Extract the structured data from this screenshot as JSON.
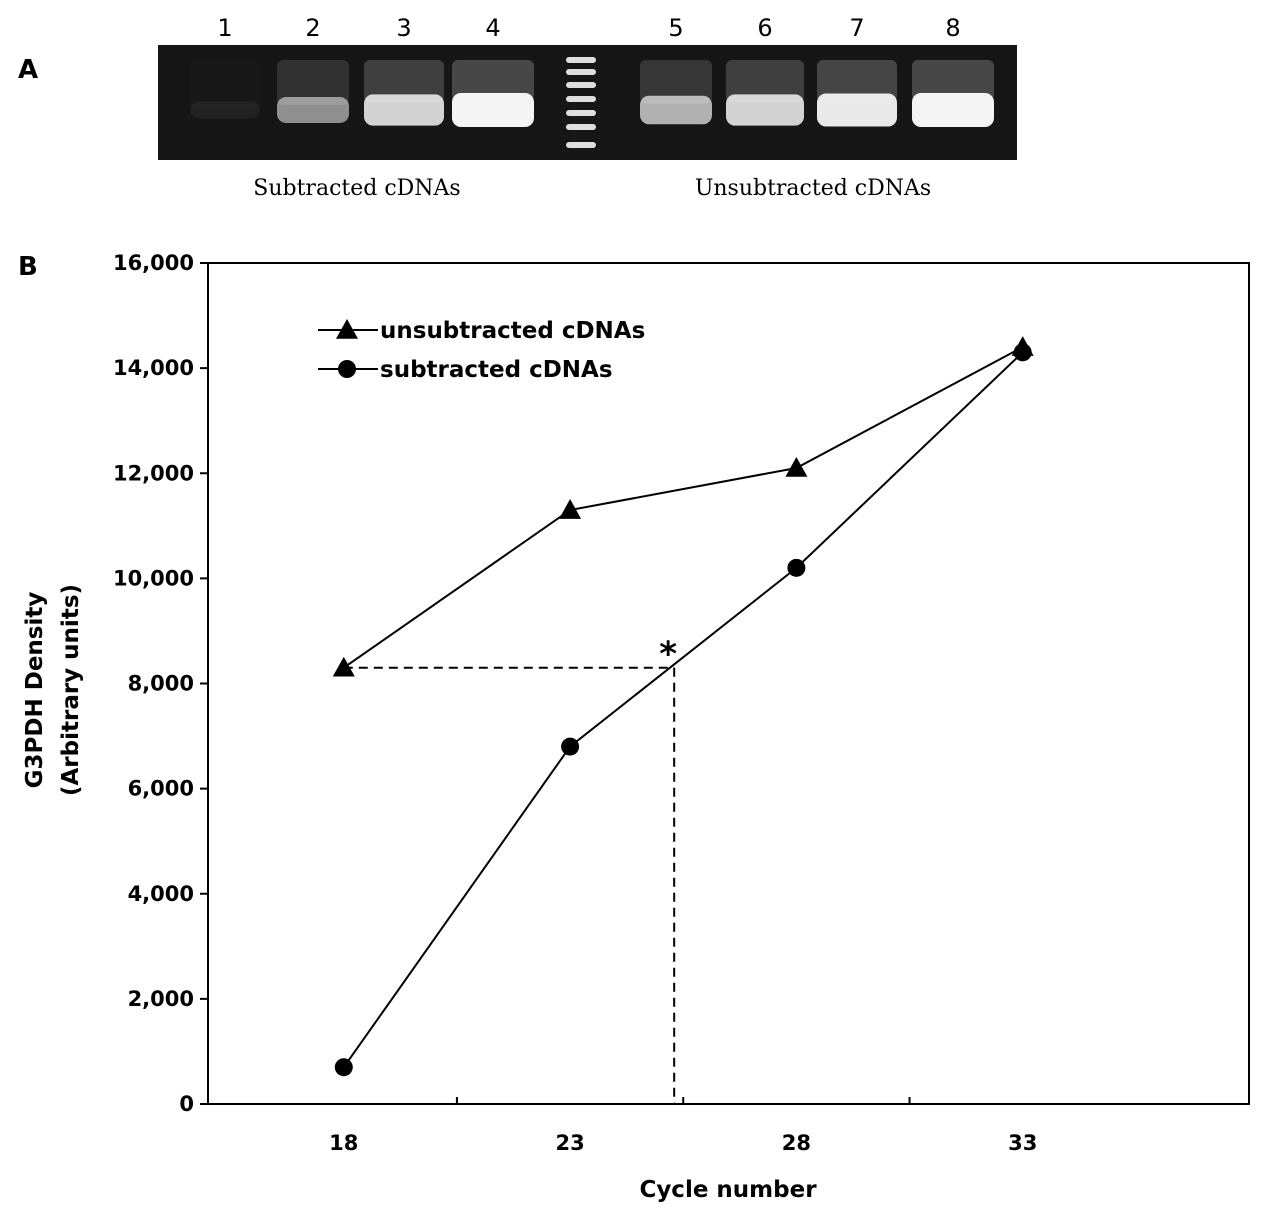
{
  "panels": {
    "a": {
      "letter": "A"
    },
    "b": {
      "letter": "B"
    }
  },
  "gel": {
    "lane_numbers": [
      "1",
      "2",
      "3",
      "4",
      "5",
      "6",
      "7",
      "8"
    ],
    "group_labels": [
      "Subtracted cDNAs",
      "Unsubtracted cDNAs"
    ],
    "band_intensity": [
      0.05,
      0.55,
      0.85,
      1.0,
      0.7,
      0.85,
      0.95,
      1.0
    ],
    "colors": {
      "background": "#161616",
      "band": "#f4f4f4",
      "ladder": "#dedede"
    }
  },
  "chart_data": {
    "type": "line",
    "xlabel": "Cycle number",
    "ylabel_lines": [
      "G3PDH Density",
      "(Arbitrary units)"
    ],
    "x": [
      18,
      23,
      28,
      33
    ],
    "xlim": [
      15,
      38
    ],
    "x_tick_labels": [
      "18",
      "23",
      "28",
      "33"
    ],
    "ylim": [
      0,
      16000
    ],
    "y_ticks": [
      0,
      2000,
      4000,
      6000,
      8000,
      10000,
      12000,
      14000,
      16000
    ],
    "y_tick_labels": [
      "0",
      "2,000",
      "4,000",
      "6,000",
      "8,000",
      "10,000",
      "12,000",
      "14,000",
      "16,000"
    ],
    "grid": false,
    "legend_position": "top-left",
    "series": [
      {
        "name": "unsubtracted cDNAs",
        "marker": "triangle",
        "values": [
          8300,
          11300,
          12100,
          14400
        ]
      },
      {
        "name": "subtracted cDNAs",
        "marker": "circle",
        "values": [
          700,
          6800,
          10200,
          14300
        ]
      }
    ],
    "annotation": {
      "text": "*",
      "x": 25.3,
      "y": 8300
    },
    "color": "#000000"
  }
}
